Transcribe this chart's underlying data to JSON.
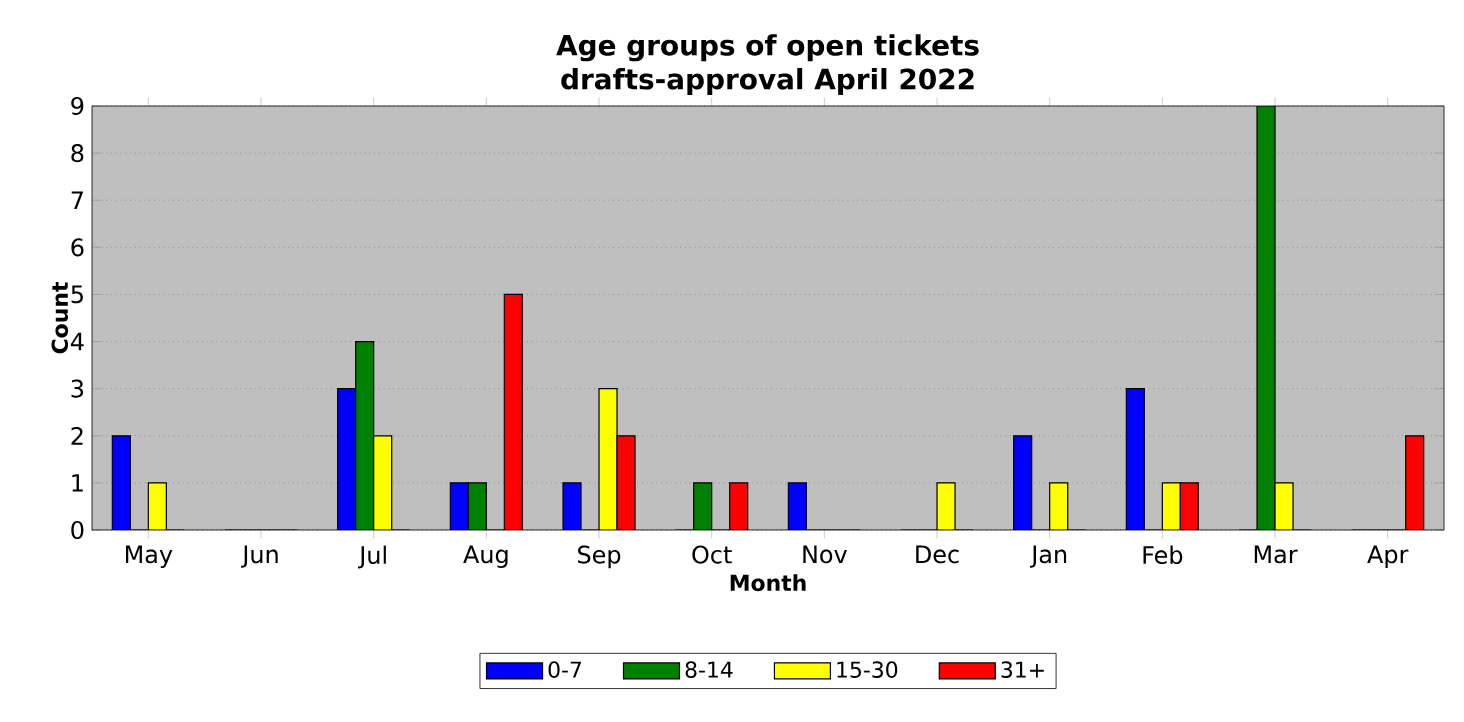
{
  "chart_data": {
    "type": "bar",
    "title": "Age groups of open tickets",
    "subtitle": "drafts-approval April 2022",
    "xlabel": "Month",
    "ylabel": "Count",
    "categories": [
      "May",
      "Jun",
      "Jul",
      "Aug",
      "Sep",
      "Oct",
      "Nov",
      "Dec",
      "Jan",
      "Feb",
      "Mar",
      "Apr"
    ],
    "series": [
      {
        "name": "0-7",
        "color": "#0000ff",
        "values": [
          2,
          0,
          3,
          1,
          1,
          0,
          1,
          0,
          2,
          3,
          0,
          0
        ]
      },
      {
        "name": "8-14",
        "color": "#008000",
        "values": [
          0,
          0,
          4,
          1,
          0,
          1,
          0,
          0,
          0,
          0,
          9,
          0
        ]
      },
      {
        "name": "15-30",
        "color": "#ffff00",
        "values": [
          1,
          0,
          2,
          0,
          3,
          0,
          0,
          1,
          1,
          1,
          1,
          0
        ]
      },
      {
        "name": "31+",
        "color": "#ff0000",
        "values": [
          0,
          0,
          0,
          5,
          2,
          1,
          0,
          0,
          0,
          1,
          0,
          2
        ]
      }
    ],
    "ylim": [
      0,
      9
    ],
    "yticks": [
      0,
      1,
      2,
      3,
      4,
      5,
      6,
      7,
      8,
      9
    ],
    "grid": "y",
    "legend": "bottom"
  }
}
